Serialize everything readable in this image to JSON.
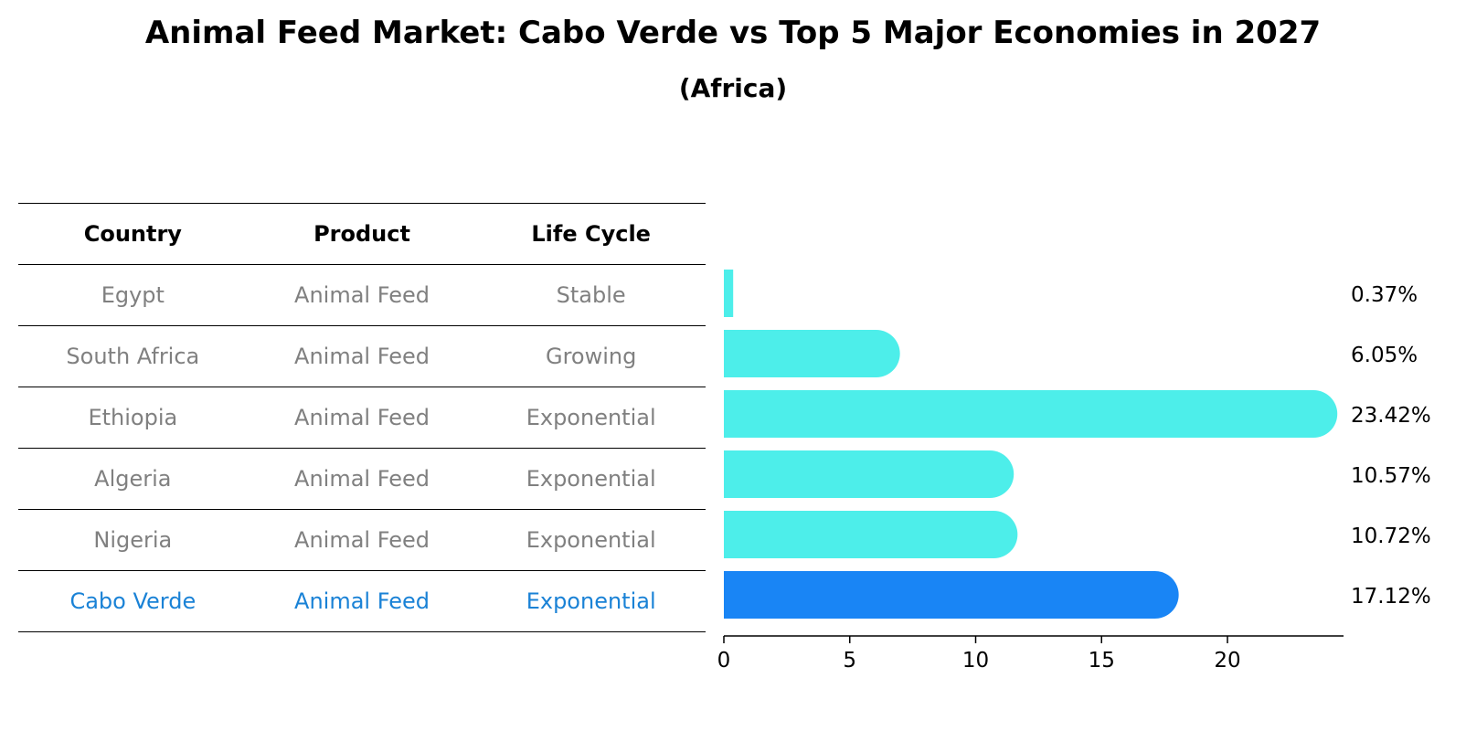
{
  "title": "Animal Feed Market: Cabo Verde vs Top 5 Major Economies in 2027",
  "subtitle": "(Africa)",
  "table": {
    "headers": [
      "Country",
      "Product",
      "Life Cycle"
    ],
    "rows": [
      {
        "country": "Egypt",
        "product": "Animal Feed",
        "life_cycle": "Stable"
      },
      {
        "country": "South Africa",
        "product": "Animal Feed",
        "life_cycle": "Growing"
      },
      {
        "country": "Ethiopia",
        "product": "Animal Feed",
        "life_cycle": "Exponential"
      },
      {
        "country": "Algeria",
        "product": "Animal Feed",
        "life_cycle": "Exponential"
      },
      {
        "country": "Nigeria",
        "product": "Animal Feed",
        "life_cycle": "Exponential"
      },
      {
        "country": "Cabo Verde",
        "product": "Animal Feed",
        "life_cycle": "Exponential"
      }
    ]
  },
  "chart_data": {
    "type": "bar",
    "orientation": "horizontal",
    "categories": [
      "Egypt",
      "South Africa",
      "Ethiopia",
      "Algeria",
      "Nigeria",
      "Cabo Verde"
    ],
    "values": [
      0.37,
      6.05,
      23.42,
      10.57,
      10.72,
      17.12
    ],
    "value_labels": [
      "0.37%",
      "6.05%",
      "23.42%",
      "10.57%",
      "10.72%",
      "17.12%"
    ],
    "highlight": "Cabo Verde",
    "xlim": [
      0,
      24.5
    ],
    "xticks": [
      0,
      5,
      10,
      15,
      20
    ],
    "xlabel": "",
    "ylabel": "",
    "colors": {
      "default": "#4deeea",
      "highlight": "#1985f5"
    }
  }
}
